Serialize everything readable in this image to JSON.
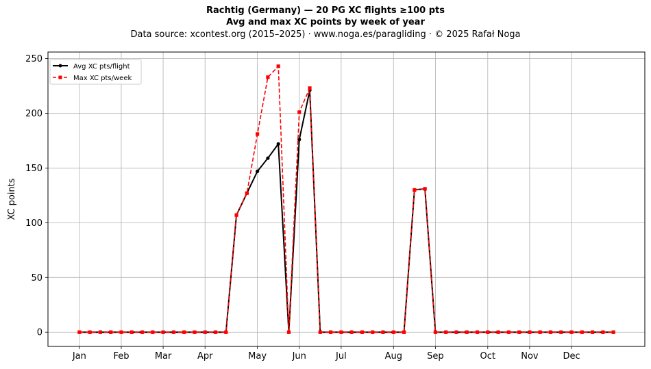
{
  "chart_data": {
    "type": "line",
    "title": "Rachtig (Germany)  —  20 PG XC flights ≥100 pts",
    "subtitle": "Avg and max XC points by week of year",
    "source_note": "Data source: xcontest.org (2015–2025)  ·  www.noga.es/paragliding  ·  © 2025 Rafał Noga",
    "xlabel": "",
    "ylabel": "XC points",
    "ylim": [
      -13,
      256
    ],
    "xlim": [
      -3,
      54
    ],
    "grid": true,
    "legend_position": "top-left",
    "x": [
      0,
      1,
      2,
      3,
      4,
      5,
      6,
      7,
      8,
      9,
      10,
      11,
      12,
      13,
      14,
      15,
      16,
      17,
      18,
      19,
      20,
      21,
      22,
      23,
      24,
      25,
      26,
      27,
      28,
      29,
      30,
      31,
      32,
      33,
      34,
      35,
      36,
      37,
      38,
      39,
      40,
      41,
      42,
      43,
      44,
      45,
      46,
      47,
      48,
      49,
      50,
      51
    ],
    "x_ticks": [
      {
        "pos": 0,
        "label": "Jan"
      },
      {
        "pos": 4,
        "label": "Feb"
      },
      {
        "pos": 8,
        "label": "Mar"
      },
      {
        "pos": 12,
        "label": "Apr"
      },
      {
        "pos": 17,
        "label": "May"
      },
      {
        "pos": 21,
        "label": "Jun"
      },
      {
        "pos": 25,
        "label": "Jul"
      },
      {
        "pos": 30,
        "label": "Aug"
      },
      {
        "pos": 34,
        "label": "Sep"
      },
      {
        "pos": 39,
        "label": "Oct"
      },
      {
        "pos": 43,
        "label": "Nov"
      },
      {
        "pos": 47,
        "label": "Dec"
      }
    ],
    "y_ticks": [
      0,
      50,
      100,
      150,
      200,
      250
    ],
    "series": [
      {
        "name": "Avg XC pts/flight",
        "color": "#000000",
        "style": "solid",
        "marker": "circle",
        "values": [
          0,
          0,
          0,
          0,
          0,
          0,
          0,
          0,
          0,
          0,
          0,
          0,
          0,
          0,
          0,
          107,
          127,
          147,
          159,
          172,
          0,
          176,
          221,
          0,
          0,
          0,
          0,
          0,
          0,
          0,
          0,
          0,
          130,
          131,
          0,
          0,
          0,
          0,
          0,
          0,
          0,
          0,
          0,
          0,
          0,
          0,
          0,
          0,
          0,
          0,
          0,
          0
        ]
      },
      {
        "name": "Max XC pts/week",
        "color": "#ff0000",
        "style": "dashed",
        "marker": "square",
        "values": [
          0,
          0,
          0,
          0,
          0,
          0,
          0,
          0,
          0,
          0,
          0,
          0,
          0,
          0,
          0,
          107,
          127,
          181,
          233,
          243,
          0,
          201,
          223,
          0,
          0,
          0,
          0,
          0,
          0,
          0,
          0,
          0,
          130,
          131,
          0,
          0,
          0,
          0,
          0,
          0,
          0,
          0,
          0,
          0,
          0,
          0,
          0,
          0,
          0,
          0,
          0,
          0
        ]
      }
    ]
  }
}
